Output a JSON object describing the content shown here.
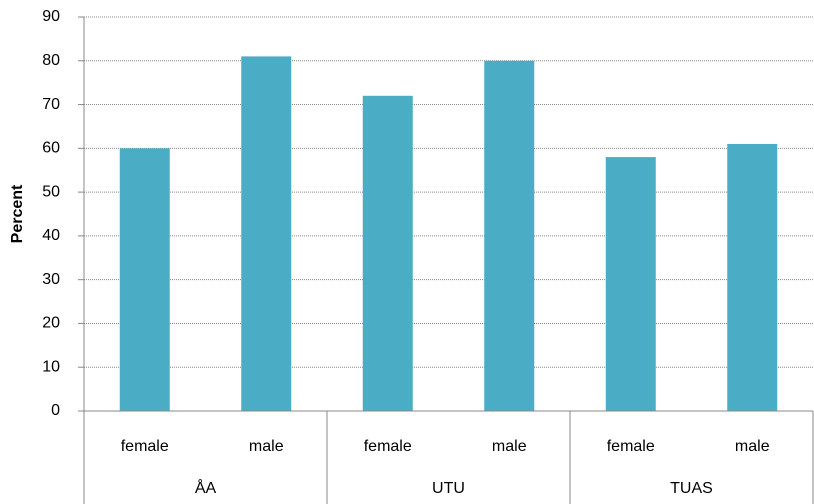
{
  "chart_data": {
    "type": "bar",
    "y_label": "Percent",
    "categories": [
      "female",
      "male",
      "female",
      "male",
      "female",
      "male"
    ],
    "groups": [
      "ÅA",
      "UTU",
      "TUAS"
    ],
    "values": [
      60,
      81,
      72,
      80,
      58,
      61
    ],
    "color": "#4bacc6",
    "ylim": [
      0,
      90
    ],
    "yticks": [
      0,
      10,
      20,
      30,
      40,
      50,
      60,
      70,
      80,
      90
    ],
    "grid": true
  }
}
